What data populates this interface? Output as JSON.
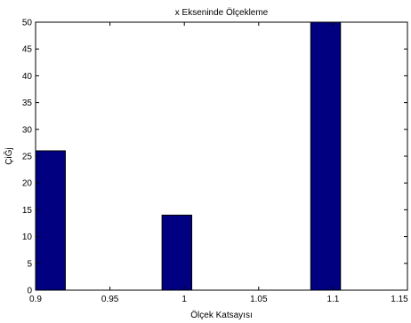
{
  "chart_data": {
    "type": "bar",
    "title": "x Ekseninde Ölçekleme",
    "xlabel": "Ölçek Katsayısı",
    "ylabel": "ÇiĞj",
    "xlim": [
      0.9,
      1.15
    ],
    "ylim": [
      0,
      50
    ],
    "xticks": [
      "0.9",
      "0.95",
      "1",
      "1.05",
      "1.1",
      "1.15"
    ],
    "yticks": [
      "0",
      "5",
      "10",
      "15",
      "20",
      "25",
      "30",
      "35",
      "40",
      "45",
      "50"
    ],
    "bar_width": 0.02,
    "x": [
      0.91,
      0.995,
      1.095
    ],
    "values": [
      26,
      14,
      50
    ],
    "grid": false,
    "bar_color": "#000080",
    "edge_color": "#000000"
  }
}
